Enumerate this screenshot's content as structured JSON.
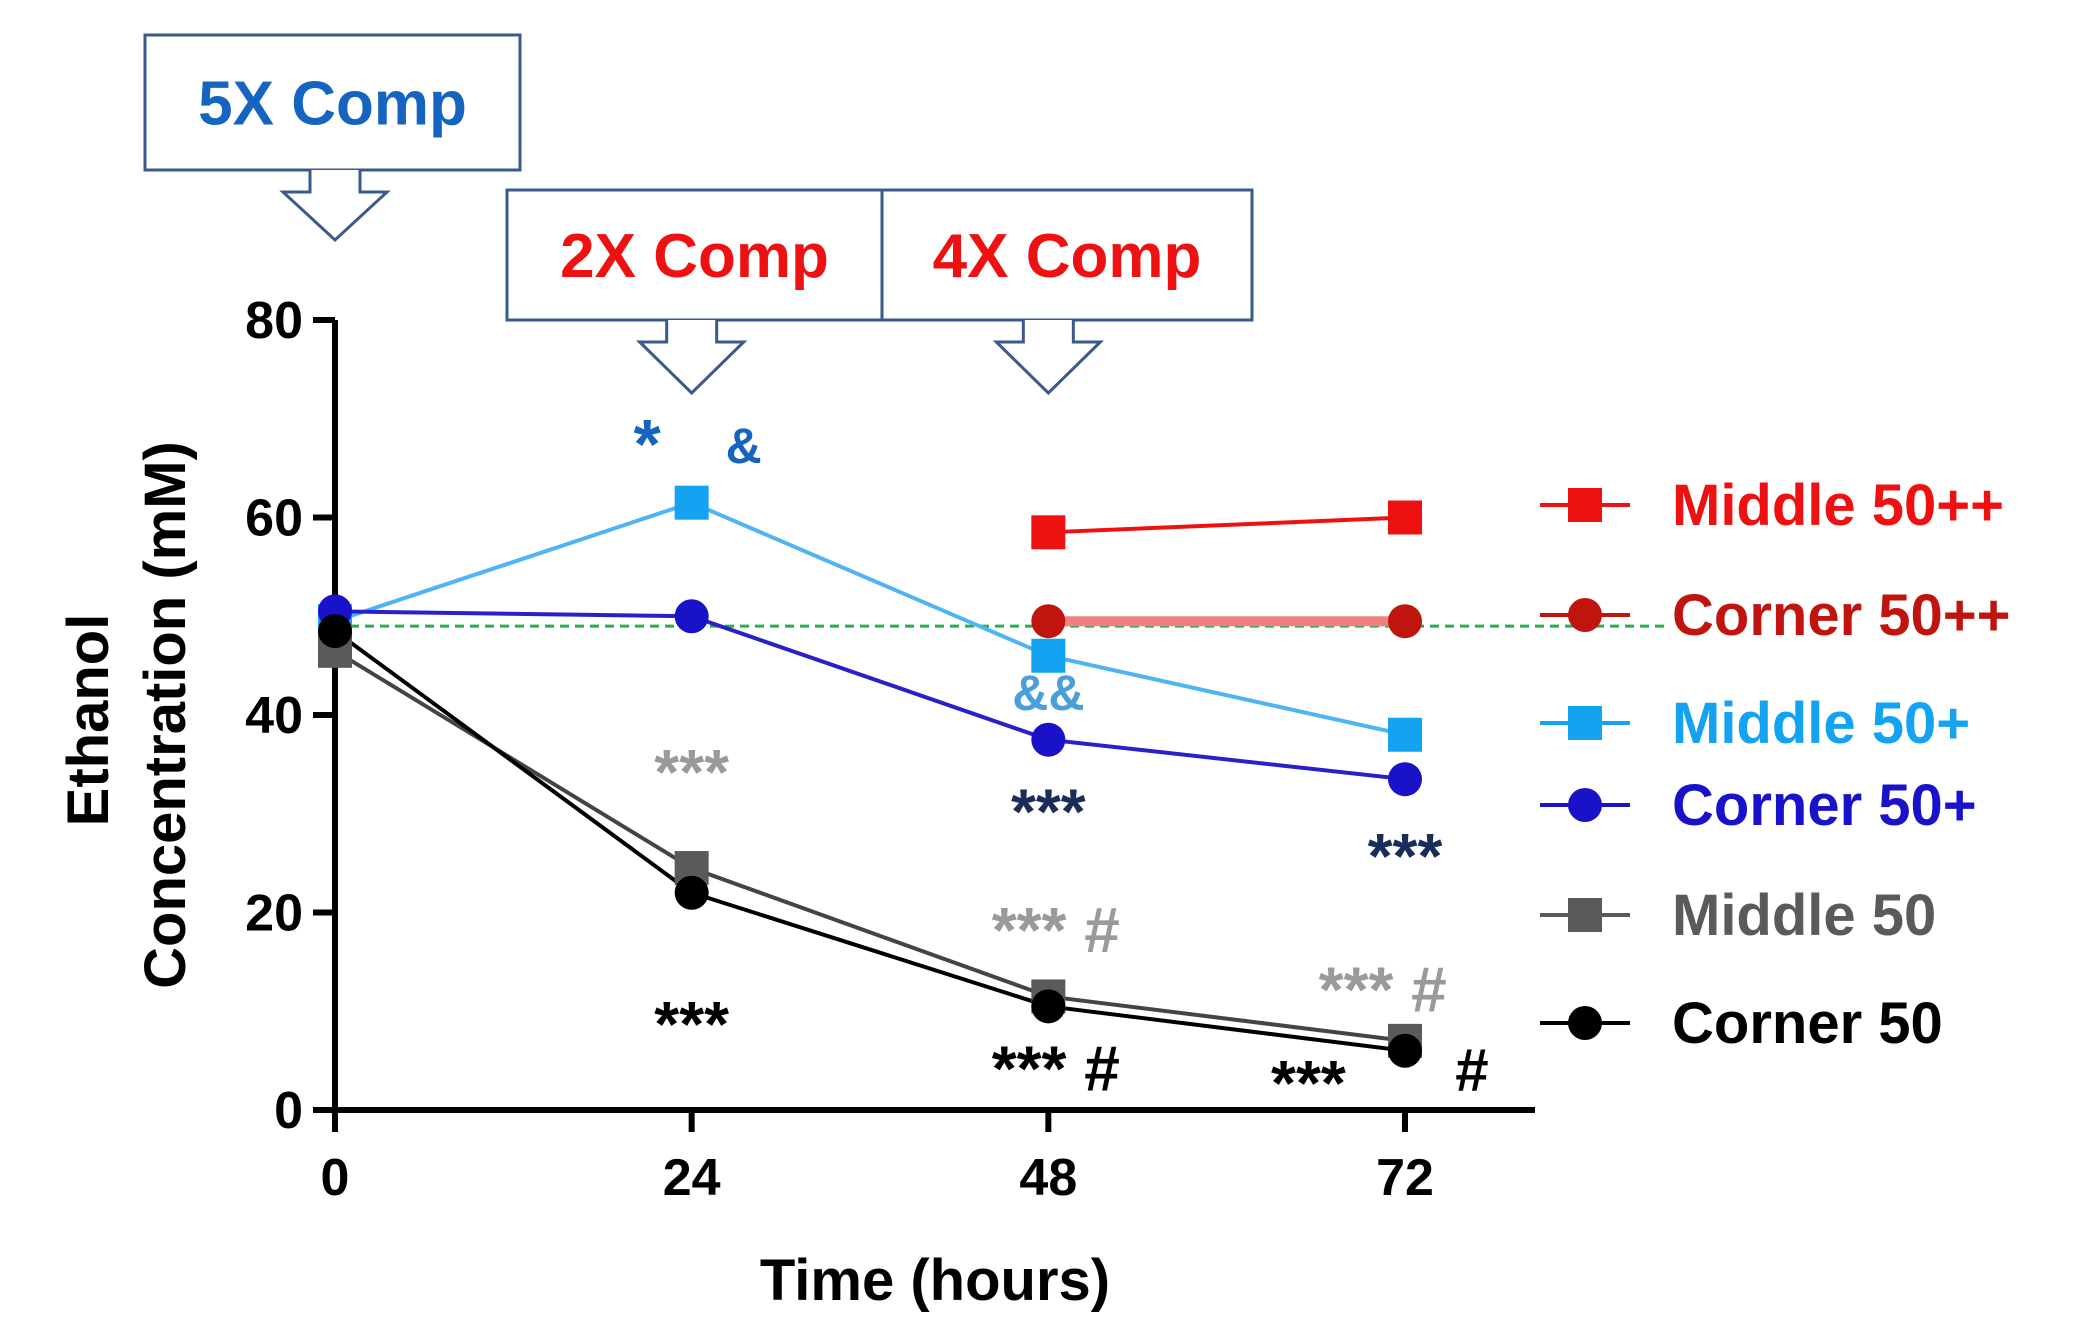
{
  "chart_data": {
    "type": "line",
    "xlabel": "Time (hours)",
    "ylabel_line1": "Ethanol",
    "ylabel_line2": "Concentration (mM)",
    "x_ticks": [
      "0",
      "24",
      "48",
      "72"
    ],
    "y_ticks": [
      "0",
      "20",
      "40",
      "60",
      "80"
    ],
    "xlim": [
      0,
      80
    ],
    "ylim": [
      0,
      80
    ],
    "reference_line": {
      "y": 49,
      "color": "#22b14c",
      "style": "dashed"
    },
    "series": [
      {
        "name": "Middle 50++",
        "marker": "square",
        "color": "#ee1111",
        "line_color": "#ee1111",
        "points": [
          [
            48,
            58.5
          ],
          [
            72,
            60
          ]
        ]
      },
      {
        "name": "Corner 50++",
        "marker": "circle",
        "color": "#c0150f",
        "line_color": "#f08080",
        "points": [
          [
            48,
            49.5
          ],
          [
            72,
            49.5
          ]
        ]
      },
      {
        "name": "Middle 50+",
        "marker": "square",
        "color": "#14a3f0",
        "line_color": "#4fb4f4",
        "points": [
          [
            0,
            49.5
          ],
          [
            24,
            61.5
          ],
          [
            48,
            46
          ],
          [
            72,
            38
          ]
        ]
      },
      {
        "name": "Corner 50+",
        "marker": "circle",
        "color": "#1a12c8",
        "line_color": "#2a20c8",
        "points": [
          [
            0,
            50.5
          ],
          [
            24,
            50
          ],
          [
            48,
            37.5
          ],
          [
            72,
            33.5
          ]
        ]
      },
      {
        "name": "Middle 50",
        "marker": "square",
        "color": "#5a5a5a",
        "line_color": "#444444",
        "points": [
          [
            0,
            46.5
          ],
          [
            24,
            24.5
          ],
          [
            48,
            11.5
          ],
          [
            72,
            7
          ]
        ]
      },
      {
        "name": "Corner 50",
        "marker": "circle",
        "color": "#000000",
        "line_color": "#000000",
        "points": [
          [
            0,
            48.5
          ],
          [
            24,
            22
          ],
          [
            48,
            10.5
          ],
          [
            72,
            6
          ]
        ]
      }
    ],
    "dosing_boxes": [
      {
        "label": "5X Comp",
        "color": "#1565c0",
        "x": 0
      },
      {
        "label": "2X Comp",
        "color": "#ee1111",
        "x": 24
      },
      {
        "label": "4X Comp",
        "color": "#ee1111",
        "x": 48
      }
    ],
    "annotations": [
      {
        "text": "*",
        "x": 21,
        "y": 65,
        "color": "#1565c0",
        "size": 70
      },
      {
        "text": "&",
        "x": 27.5,
        "y": 65.5,
        "color": "#1565c0",
        "size": 50
      },
      {
        "text": "&&",
        "x": 48,
        "y": 40.5,
        "color": "#4a9fd8",
        "size": 50
      },
      {
        "text": "***",
        "x": 24,
        "y": 32,
        "color": "#9a9a9a",
        "size": 64
      },
      {
        "text": "***",
        "x": 24,
        "y": 6.5,
        "color": "#000000",
        "size": 64
      },
      {
        "text": "***",
        "x": 48,
        "y": 28,
        "color": "#1a2d5a",
        "size": 64
      },
      {
        "text": "*** #",
        "x": 48.5,
        "y": 16,
        "color": "#9a9a9a",
        "size": 64
      },
      {
        "text": "*** #",
        "x": 48.5,
        "y": 2,
        "color": "#000000",
        "size": 64
      },
      {
        "text": "***",
        "x": 72,
        "y": 23.5,
        "color": "#1a2d5a",
        "size": 64
      },
      {
        "text": "*** #",
        "x": 70.5,
        "y": 10,
        "color": "#9a9a9a",
        "size": 64
      },
      {
        "text": "***",
        "x": 65.5,
        "y": 0.5,
        "color": "#000000",
        "size": 64
      },
      {
        "text": "#",
        "x": 76.5,
        "y": 2,
        "color": "#000000",
        "size": 60
      }
    ]
  }
}
